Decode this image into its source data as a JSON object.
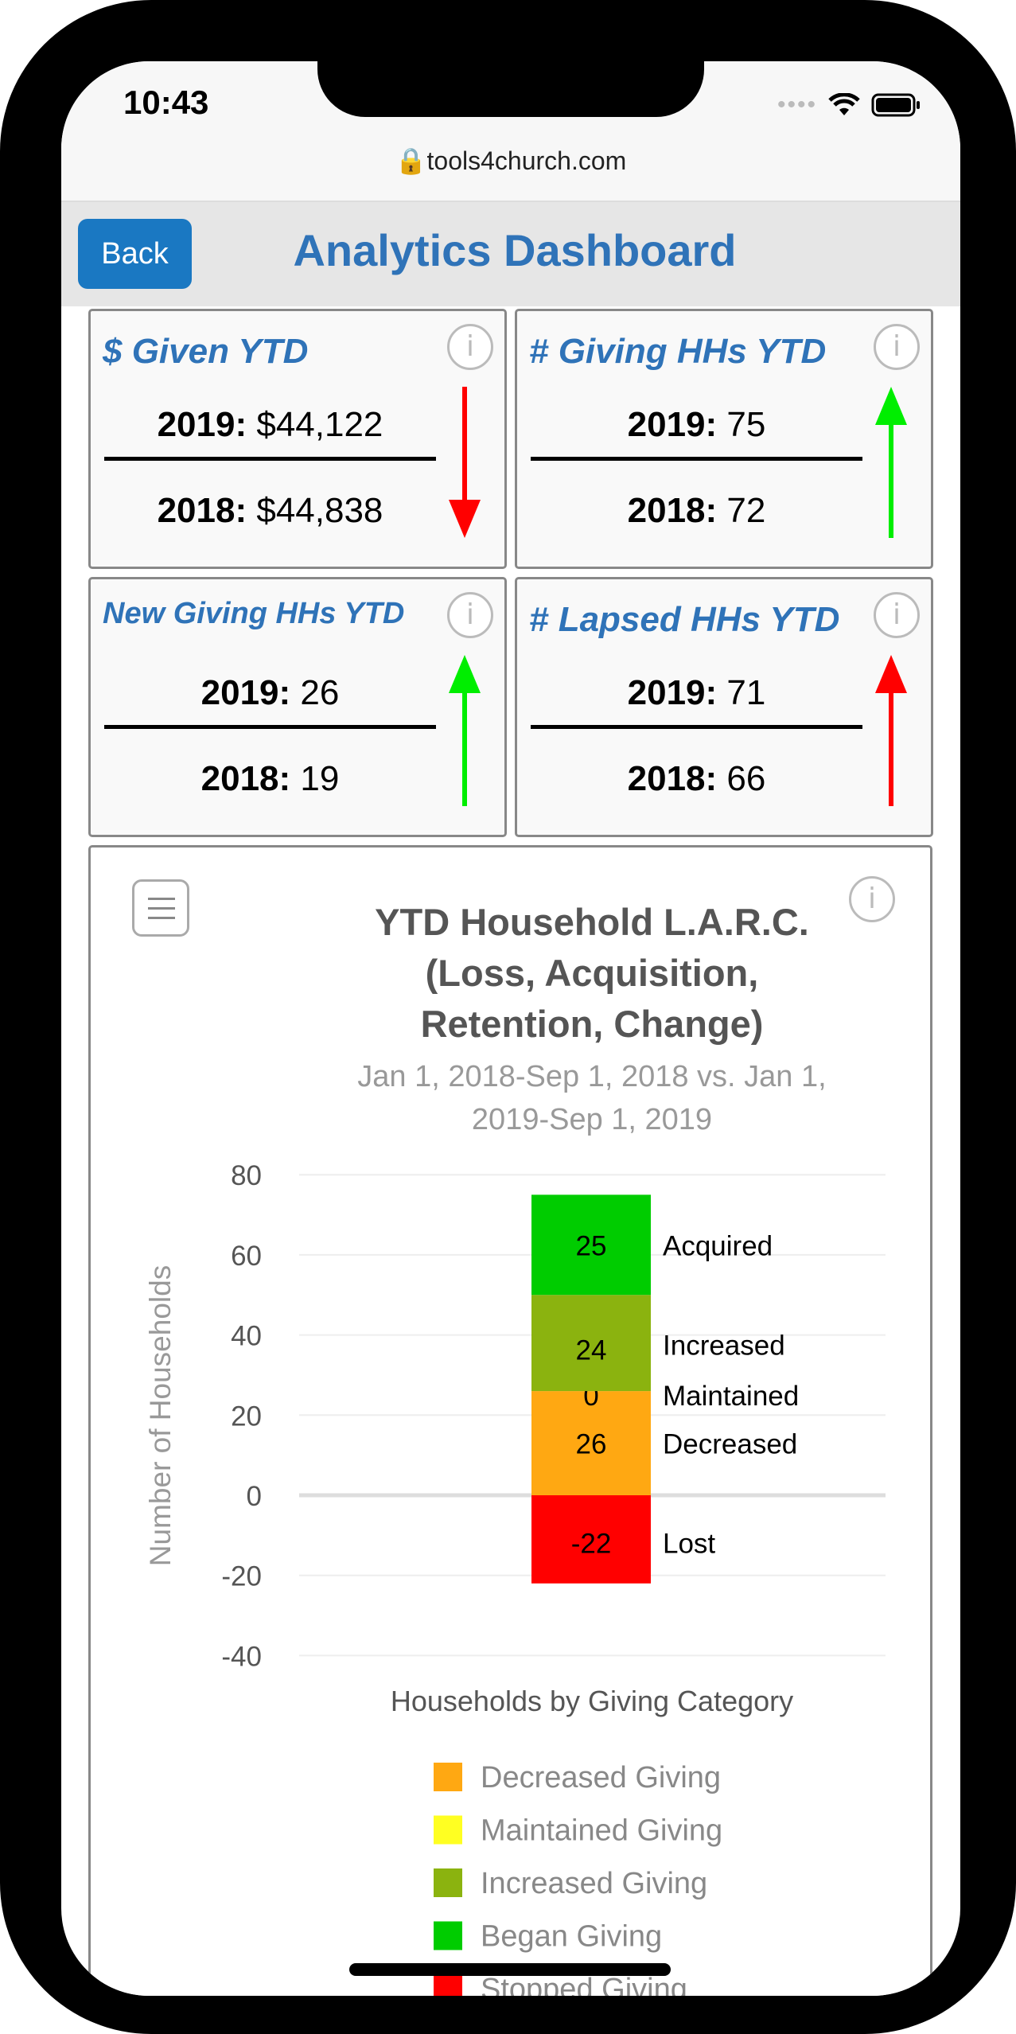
{
  "status": {
    "time": "10:43",
    "url": "tools4church.com"
  },
  "header": {
    "back_label": "Back",
    "title": "Analytics Dashboard"
  },
  "cards": [
    {
      "title": "$ Given YTD",
      "y1_label": "2019:",
      "y1_value": " $44,122",
      "y2_label": "2018:",
      "y2_value": " $44,838",
      "trend": "down",
      "color": "#ff0000"
    },
    {
      "title": "# Giving HHs YTD",
      "y1_label": "2019:",
      "y1_value": " 75",
      "y2_label": "2018:",
      "y2_value": " 72",
      "trend": "up",
      "color": "#00ee00"
    },
    {
      "title": "New Giving HHs YTD",
      "y1_label": "2019:",
      "y1_value": " 26",
      "y2_label": "2018:",
      "y2_value": " 19",
      "trend": "up",
      "color": "#00ee00"
    },
    {
      "title": "# Lapsed HHs YTD",
      "y1_label": "2019:",
      "y1_value": " 71",
      "y2_label": "2018:",
      "y2_value": " 66",
      "trend": "up",
      "color": "#ff0000"
    }
  ],
  "info_glyph": "i",
  "chart_data": {
    "type": "bar",
    "stacked": true,
    "title": [
      "YTD Household L.A.R.C.",
      "(Loss, Acquisition,",
      "Retention, Change)"
    ],
    "subtitle": [
      "Jan 1, 2018-Sep 1, 2018 vs. Jan 1,",
      "2019-Sep 1, 2019"
    ],
    "xlabel": "Households by Giving Category",
    "ylabel": "Number of Households",
    "ylim": [
      -40,
      80
    ],
    "yticks": [
      "80",
      "60",
      "40",
      "20",
      "0",
      "-20",
      "-40"
    ],
    "grid": true,
    "segments": [
      {
        "name": "Decreased Giving",
        "label": "Decreased",
        "value": 26,
        "color": "#ffa812"
      },
      {
        "name": "Maintained Giving",
        "label": "Maintained",
        "value": 0,
        "color": "#ffff22"
      },
      {
        "name": "Increased Giving",
        "label": "Increased",
        "value": 24,
        "color": "#8bb30f"
      },
      {
        "name": "Began Giving",
        "label": "Acquired",
        "value": 25,
        "color": "#00cc00"
      },
      {
        "name": "Stopped Giving",
        "label": "Lost",
        "value": -22,
        "color": "#ff0000"
      }
    ],
    "legend_position": "bottom"
  }
}
